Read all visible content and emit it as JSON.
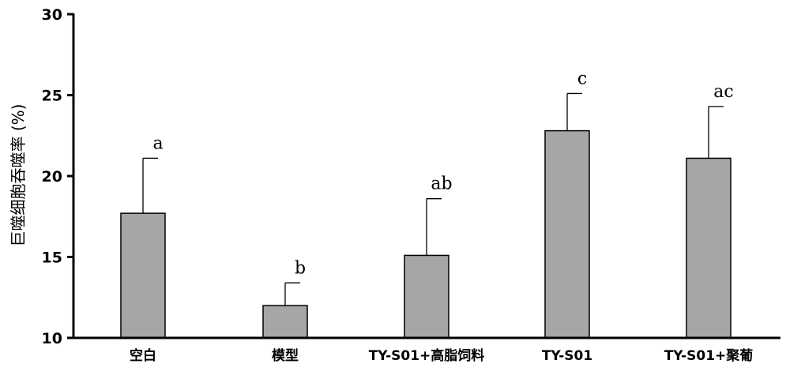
{
  "chart_data": {
    "type": "bar",
    "ylabel": "巨噬细胞吞噬率 (%)",
    "ylim": [
      10,
      30
    ],
    "yticks": [
      10,
      15,
      20,
      25,
      30
    ],
    "categories": [
      "空白",
      "模型",
      "TY-S01+高脂饲料",
      "TY-S01",
      "TY-S01+聚葡"
    ],
    "values": [
      17.7,
      12.0,
      15.1,
      22.8,
      21.1
    ],
    "errors": [
      3.4,
      1.4,
      3.5,
      2.3,
      3.2
    ],
    "significance": [
      "a",
      "b",
      "ab",
      "c",
      "ac"
    ],
    "bar_color": "#a6a6a6",
    "grid": false
  }
}
